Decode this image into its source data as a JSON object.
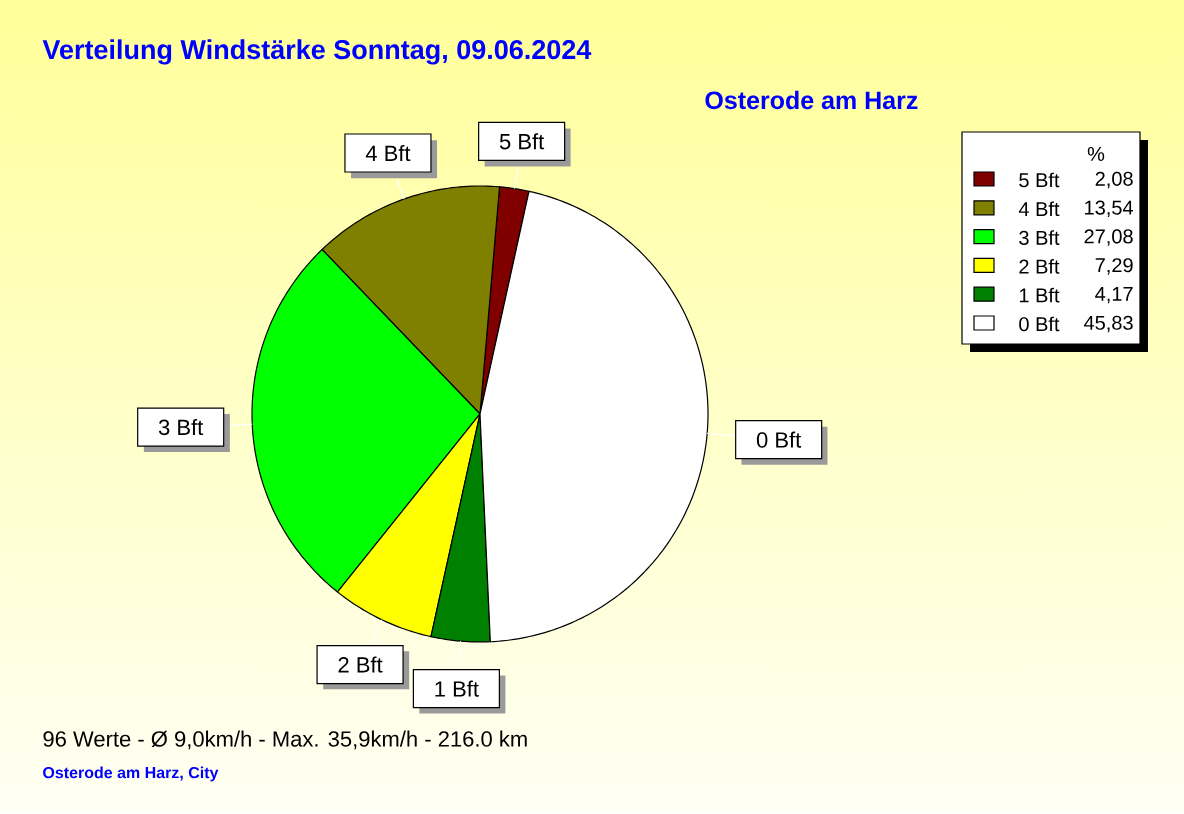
{
  "chart_data": {
    "type": "pie",
    "title": "Verteilung Windstärke  Sonntag, 09.06.2024",
    "subtitle": "Osterode am Harz",
    "categories": [
      "5 Bft",
      "4 Bft",
      "3 Bft",
      "2 Bft",
      "1 Bft",
      "0 Bft"
    ],
    "values": [
      2.08,
      13.54,
      27.08,
      7.29,
      4.17,
      45.83
    ],
    "colors": [
      "#800000",
      "#808000",
      "#00ff00",
      "#ffff00",
      "#008000",
      "#ffffff"
    ],
    "value_labels": [
      "2,08",
      "13,54",
      "27,08",
      "7,29",
      "4,17",
      "45,83"
    ],
    "legend": "top right",
    "legend_title": "%",
    "annotations": [
      "96 Werte  -  Ø 9,0km/h  -  Max. 35,9km/h  -  216.0 km",
      "Osterode am Harz, City"
    ]
  }
}
